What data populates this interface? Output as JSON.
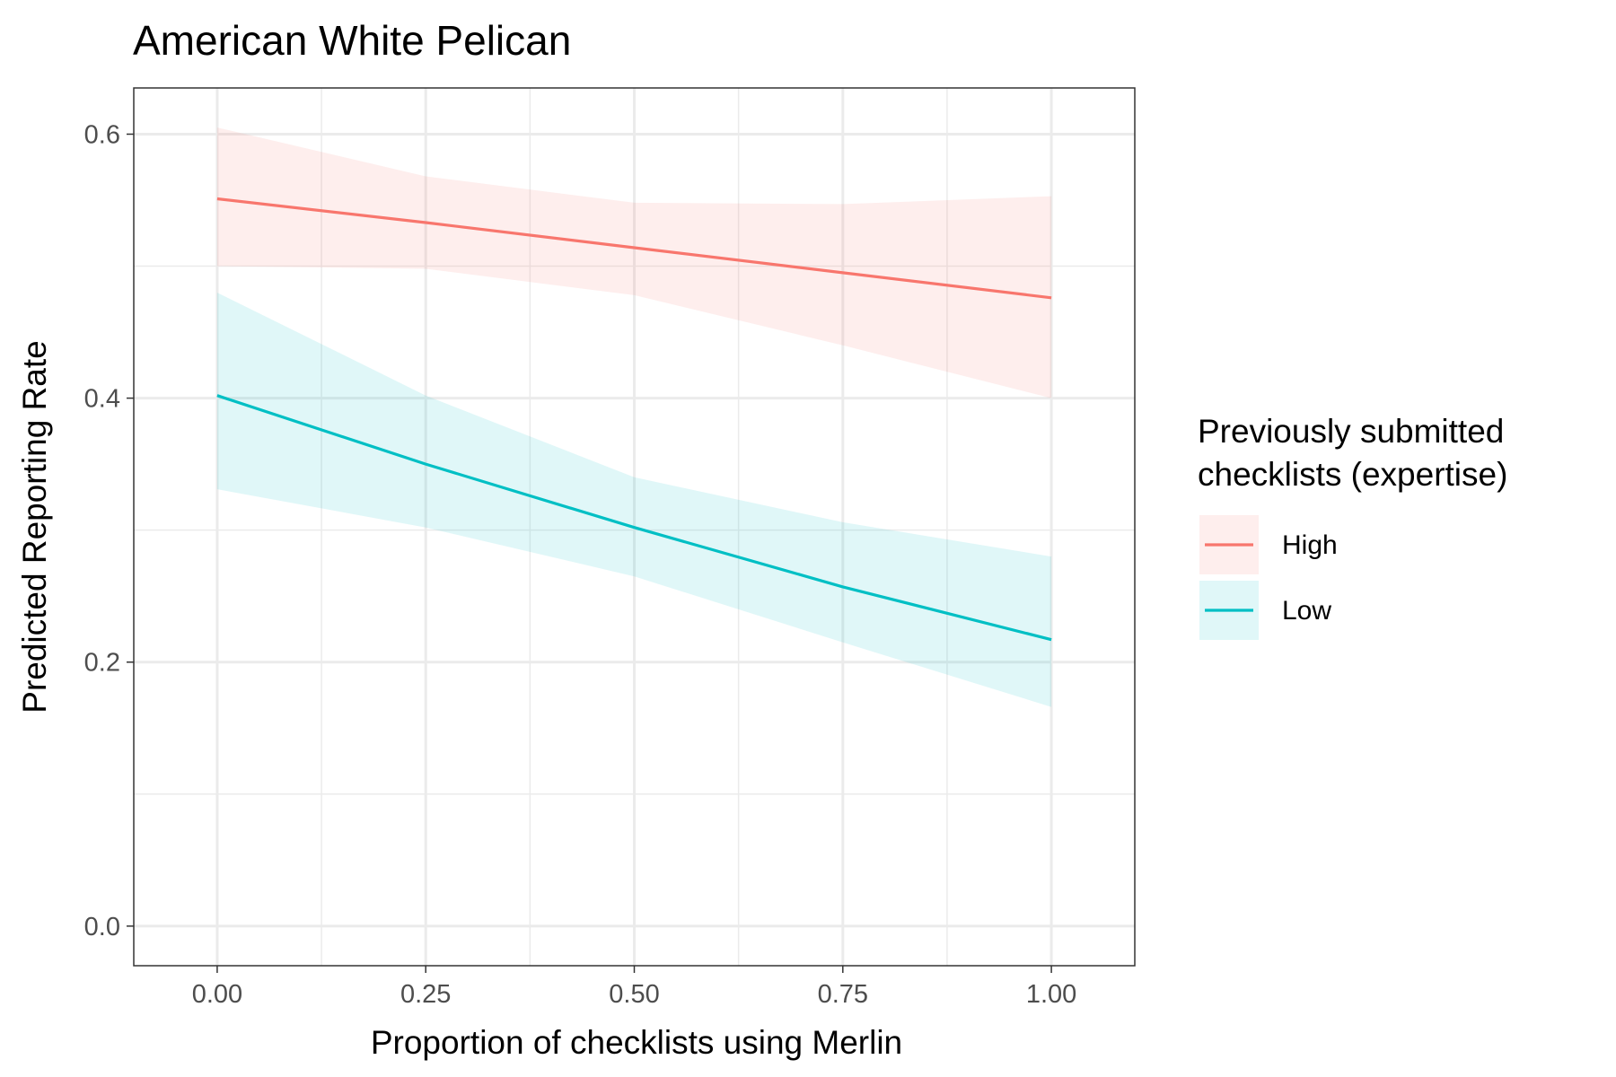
{
  "chart_data": {
    "type": "line",
    "title": "American White Pelican",
    "xlabel": "Proportion of checklists using Merlin",
    "ylabel": "Predicted Reporting Rate",
    "xlim": [
      -0.1,
      1.1
    ],
    "ylim": [
      -0.03,
      0.635
    ],
    "x_ticks": [
      0,
      0.25,
      0.5,
      0.75,
      1
    ],
    "x_tick_labels": [
      "0.00",
      "0.25",
      "0.50",
      "0.75",
      "1.00"
    ],
    "y_ticks": [
      0,
      0.2,
      0.4,
      0.6
    ],
    "y_tick_labels": [
      "0.0",
      "0.2",
      "0.4",
      "0.6"
    ],
    "grid": true,
    "legend": {
      "title_lines": [
        "Previously submitted",
        "checklists (expertise)"
      ],
      "position": "right"
    },
    "series": [
      {
        "name": "High",
        "color": "#F8766D",
        "x": [
          0,
          0.25,
          0.5,
          0.75,
          1
        ],
        "y": [
          0.551,
          0.533,
          0.514,
          0.495,
          0.476
        ],
        "lower": [
          0.5,
          0.498,
          0.478,
          0.44,
          0.4
        ],
        "upper": [
          0.605,
          0.568,
          0.548,
          0.547,
          0.553
        ]
      },
      {
        "name": "Low",
        "color": "#00BFC4",
        "x": [
          0,
          0.25,
          0.5,
          0.75,
          1
        ],
        "y": [
          0.402,
          0.35,
          0.302,
          0.257,
          0.217
        ],
        "lower": [
          0.331,
          0.302,
          0.265,
          0.215,
          0.166
        ],
        "upper": [
          0.48,
          0.402,
          0.34,
          0.306,
          0.28
        ]
      }
    ]
  }
}
